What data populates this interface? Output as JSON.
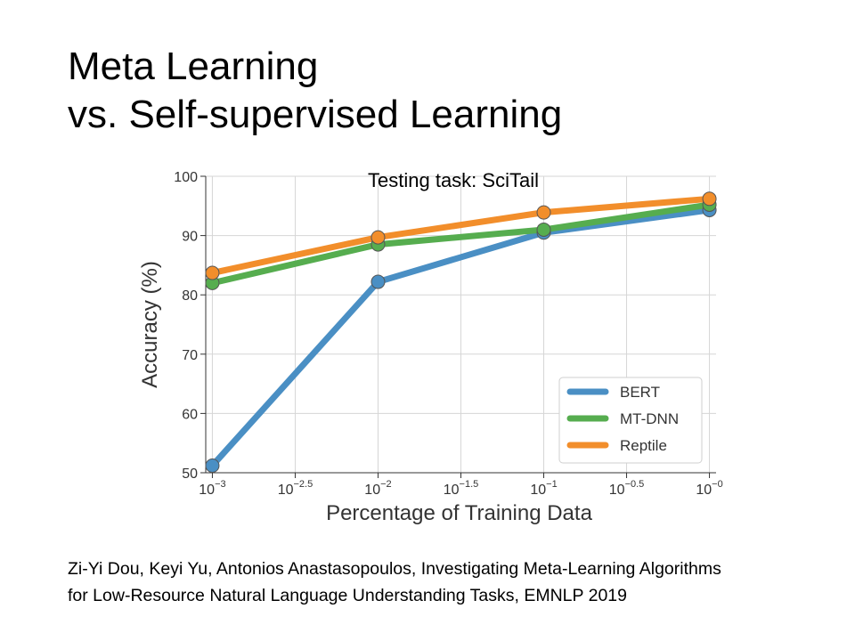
{
  "slide": {
    "title_line1": "Meta Learning",
    "title_line2": "vs. Self-supervised Learning",
    "citation_line1": "Zi-Yi Dou, Keyi Yu, Antonios Anastasopoulos, Investigating Meta-Learning Algorithms",
    "citation_line2": "for Low-Resource Natural Language Understanding Tasks, EMNLP 2019"
  },
  "chart_data": {
    "type": "line",
    "title": "Testing task: SciTail",
    "xlabel": "Percentage of Training Data",
    "ylabel": "Accuracy (%)",
    "x_scale": "log10",
    "x": [
      0.001,
      0.01,
      0.1,
      1.0
    ],
    "x_ticks": [
      {
        "value": 0.001,
        "base": "10",
        "exp": "−3"
      },
      {
        "value": 0.0031623,
        "base": "10",
        "exp": "−2.5"
      },
      {
        "value": 0.01,
        "base": "10",
        "exp": "−2"
      },
      {
        "value": 0.031623,
        "base": "10",
        "exp": "−1.5"
      },
      {
        "value": 0.1,
        "base": "10",
        "exp": "−1"
      },
      {
        "value": 0.31623,
        "base": "10",
        "exp": "−0.5"
      },
      {
        "value": 1.0,
        "base": "10",
        "exp": "−0"
      }
    ],
    "ylim": [
      50,
      100
    ],
    "y_ticks": [
      50,
      60,
      70,
      80,
      90,
      100
    ],
    "grid": true,
    "legend_position": "bottom-right",
    "series": [
      {
        "name": "BERT",
        "color": "#4a8fc4",
        "values": [
          51.2,
          82.2,
          90.5,
          94.3
        ]
      },
      {
        "name": "MT-DNN",
        "color": "#56ad4f",
        "values": [
          82.0,
          88.5,
          91.0,
          95.2
        ]
      },
      {
        "name": "Reptile",
        "color": "#f28e2b",
        "values": [
          83.7,
          89.7,
          93.9,
          96.2
        ]
      }
    ]
  }
}
